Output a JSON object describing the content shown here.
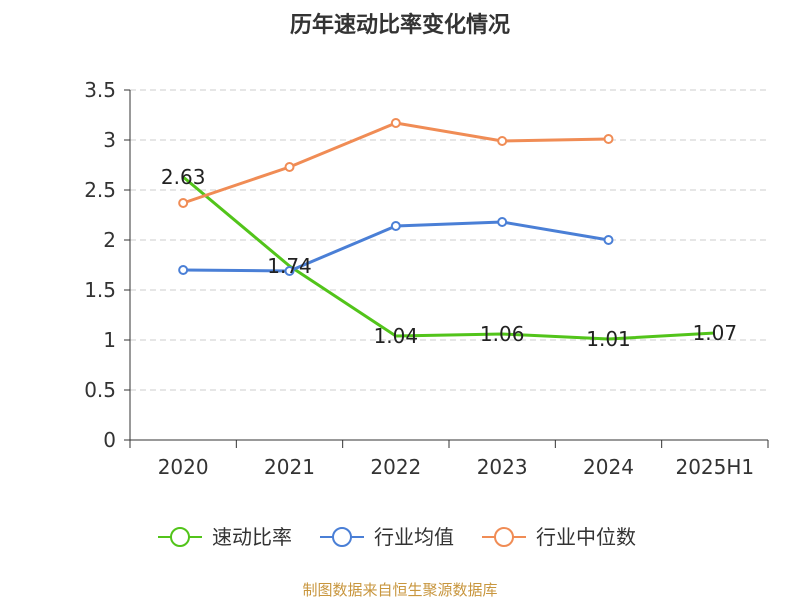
{
  "chart_data": {
    "type": "line",
    "title": "历年速动比率变化情况",
    "categories": [
      "2020",
      "2021",
      "2022",
      "2023",
      "2024",
      "2025H1"
    ],
    "ylim": [
      0,
      3.5
    ],
    "y_ticks": [
      "0",
      "0.5",
      "1",
      "1.5",
      "2",
      "2.5",
      "3",
      "3.5"
    ],
    "grid": true,
    "legend_position": "bottom",
    "series": [
      {
        "name": "速动比率",
        "color": "#52c41a",
        "values": [
          2.63,
          1.74,
          1.04,
          1.06,
          1.01,
          1.07
        ],
        "labels": [
          "2.63",
          "1.74",
          "1.04",
          "1.06",
          "1.01",
          "1.07"
        ],
        "show_markers": false
      },
      {
        "name": "行业均值",
        "color": "#4a7fd6",
        "values": [
          1.7,
          1.69,
          2.14,
          2.18,
          2.0,
          null
        ],
        "show_markers": true
      },
      {
        "name": "行业中位数",
        "color": "#f08c55",
        "values": [
          2.37,
          2.73,
          3.17,
          2.99,
          3.01,
          null
        ],
        "show_markers": true
      }
    ],
    "source": "制图数据来自恒生聚源数据库"
  }
}
